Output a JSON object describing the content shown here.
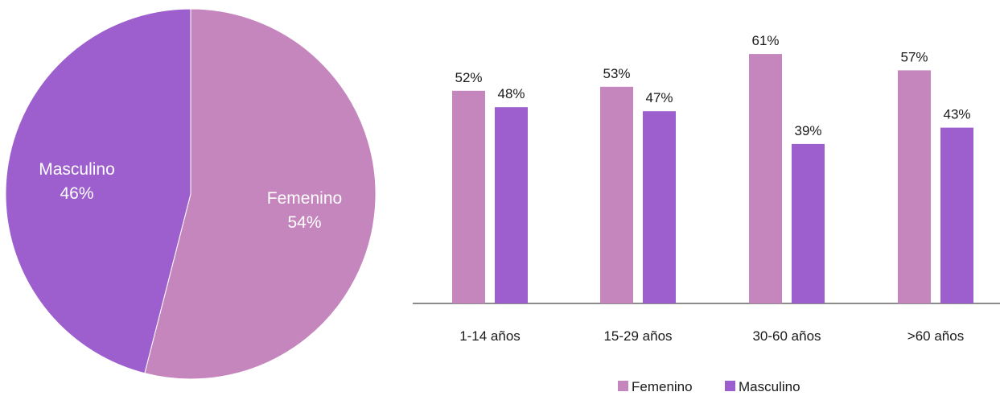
{
  "chart_data": [
    {
      "type": "pie",
      "title": "",
      "slices": [
        {
          "label": "Femenino",
          "value": 54,
          "value_label": "54%",
          "color": "#c586be"
        },
        {
          "label": "Masculino",
          "value": 46,
          "value_label": "46%",
          "color": "#9d5fce"
        }
      ]
    },
    {
      "type": "bar",
      "title": "",
      "xlabel": "",
      "ylabel": "",
      "ylim": [
        0,
        70
      ],
      "grid": false,
      "legend": "bottom",
      "categories": [
        "1-14 años",
        "15-29 años",
        "30-60 años",
        ">60 años"
      ],
      "series": [
        {
          "name": "Femenino",
          "color": "#c586be",
          "values": [
            52,
            53,
            61,
            57
          ],
          "labels": [
            "52%",
            "53%",
            "61%",
            "57%"
          ]
        },
        {
          "name": "Masculino",
          "color": "#9d5fce",
          "values": [
            48,
            47,
            39,
            43
          ],
          "labels": [
            "48%",
            "47%",
            "39%",
            "43%"
          ]
        }
      ]
    }
  ]
}
